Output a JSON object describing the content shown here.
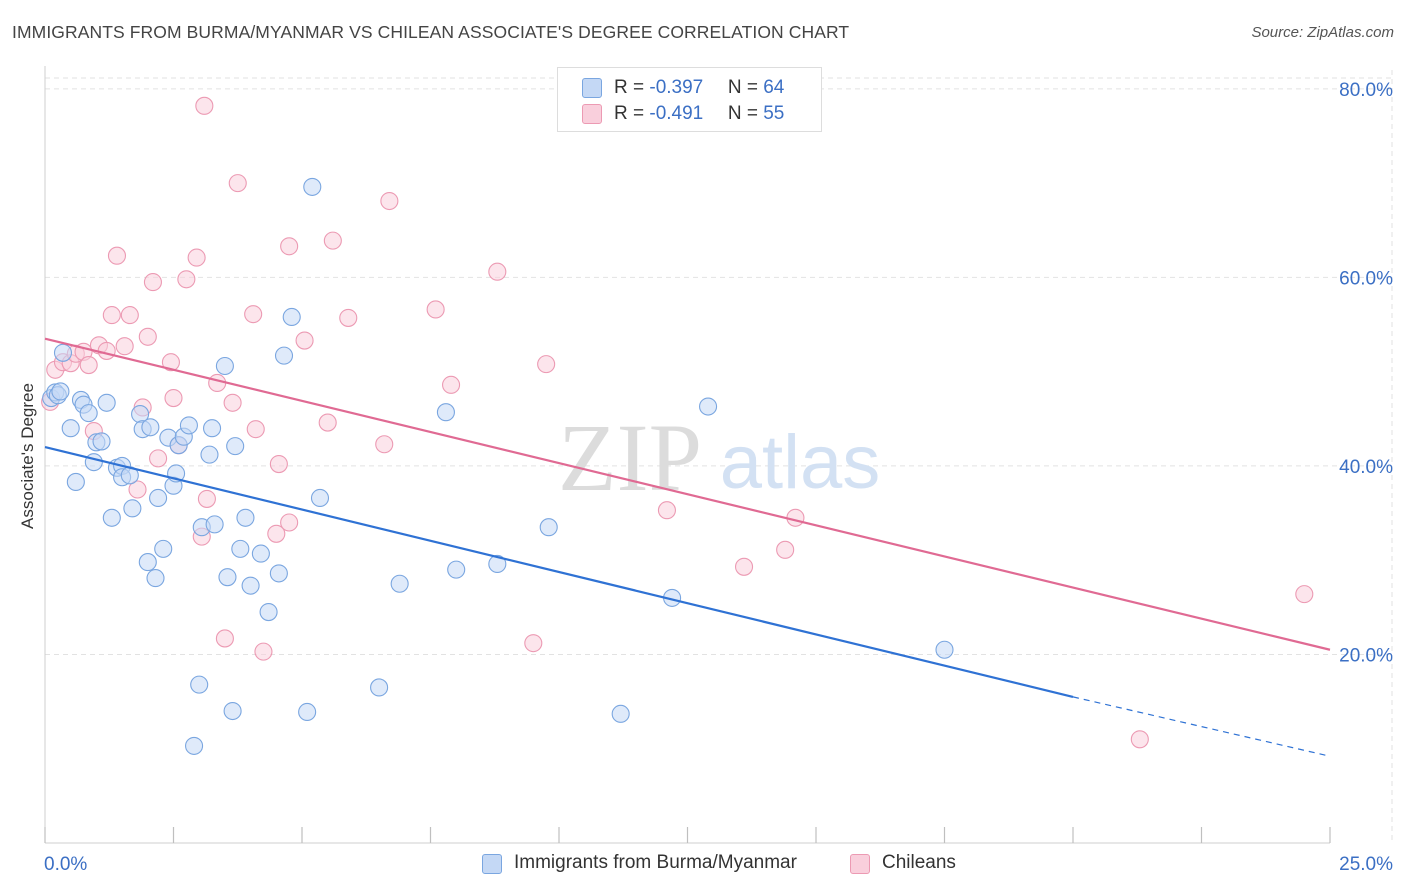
{
  "header": {
    "title": "IMMIGRANTS FROM BURMA/MYANMAR VS CHILEAN ASSOCIATE'S DEGREE CORRELATION CHART",
    "source": "Source: ZipAtlas.com"
  },
  "watermark": {
    "zip": "ZIP",
    "atlas": "atlas"
  },
  "legend": {
    "rows": [
      {
        "r_label": "R = ",
        "r_value": "-0.397",
        "n_label": "N = ",
        "n_value": "64"
      },
      {
        "r_label": "R = ",
        "r_value": "-0.491",
        "n_label": "N = ",
        "n_value": "55"
      }
    ]
  },
  "bottom_legend": {
    "series1": "Immigrants from Burma/Myanmar",
    "series2": "Chileans"
  },
  "chart_data": {
    "type": "scatter",
    "title": "IMMIGRANTS FROM BURMA/MYANMAR VS CHILEAN ASSOCIATE'S DEGREE CORRELATION CHART",
    "xlabel": "",
    "ylabel": "Associate's Degree",
    "xlim": [
      0,
      25
    ],
    "ylim": [
      0,
      82
    ],
    "x_tick_labels": [
      "0.0%",
      "25.0%"
    ],
    "y_ticks": [
      20,
      40,
      60,
      80
    ],
    "y_tick_labels": [
      "20.0%",
      "40.0%",
      "60.0%",
      "80.0%"
    ],
    "grid": true,
    "legend_position": "top-center",
    "colors": {
      "series1_fill": "#c4d8f5",
      "series1_stroke": "#7aa6e0",
      "series1_line": "#2f72d4",
      "series2_fill": "#f9cfdc",
      "series2_stroke": "#ec9ab3",
      "series2_line": "#e06a93",
      "grid": "#e2e2e2",
      "axis_label": "#3b6fc4"
    },
    "series": [
      {
        "name": "Immigrants from Burma/Myanmar",
        "r": -0.397,
        "n": 64,
        "trend": {
          "x0": 0,
          "y0": 42,
          "x1": 20,
          "y1": 15.5,
          "dash_to_x": 25,
          "dash_to_y": 9.2
        },
        "points": [
          [
            0.12,
            47.2
          ],
          [
            0.2,
            47.8
          ],
          [
            0.25,
            47.5
          ],
          [
            0.3,
            47.9
          ],
          [
            0.35,
            52
          ],
          [
            0.5,
            44
          ],
          [
            0.6,
            38.3
          ],
          [
            0.7,
            47
          ],
          [
            0.75,
            46.5
          ],
          [
            0.85,
            45.6
          ],
          [
            0.95,
            40.4
          ],
          [
            1.0,
            42.5
          ],
          [
            1.1,
            42.6
          ],
          [
            1.2,
            46.7
          ],
          [
            1.3,
            34.5
          ],
          [
            1.4,
            39.8
          ],
          [
            1.5,
            40
          ],
          [
            1.5,
            38.8
          ],
          [
            1.65,
            39
          ],
          [
            1.7,
            35.5
          ],
          [
            1.85,
            45.5
          ],
          [
            1.9,
            43.9
          ],
          [
            2.0,
            29.8
          ],
          [
            2.05,
            44.1
          ],
          [
            2.15,
            28.1
          ],
          [
            2.2,
            36.6
          ],
          [
            2.3,
            31.2
          ],
          [
            2.4,
            43
          ],
          [
            2.5,
            37.9
          ],
          [
            2.55,
            39.2
          ],
          [
            2.6,
            42.2
          ],
          [
            2.7,
            43.1
          ],
          [
            2.8,
            44.3
          ],
          [
            2.9,
            10.3
          ],
          [
            3.0,
            16.8
          ],
          [
            3.05,
            33.5
          ],
          [
            3.2,
            41.2
          ],
          [
            3.25,
            44
          ],
          [
            3.3,
            33.8
          ],
          [
            3.5,
            50.6
          ],
          [
            3.55,
            28.2
          ],
          [
            3.65,
            14
          ],
          [
            3.7,
            42.1
          ],
          [
            3.8,
            31.2
          ],
          [
            3.9,
            34.5
          ],
          [
            4.0,
            27.3
          ],
          [
            4.2,
            30.7
          ],
          [
            4.35,
            24.5
          ],
          [
            4.55,
            28.6
          ],
          [
            4.65,
            51.7
          ],
          [
            5.1,
            13.9
          ],
          [
            5.35,
            36.6
          ],
          [
            6.5,
            16.5
          ],
          [
            6.9,
            27.5
          ],
          [
            7.8,
            45.7
          ],
          [
            8.0,
            29
          ],
          [
            8.8,
            29.6
          ],
          [
            9.8,
            33.5
          ],
          [
            11.2,
            13.7
          ],
          [
            12.2,
            26
          ],
          [
            12.9,
            46.3
          ],
          [
            17.5,
            20.5
          ],
          [
            5.2,
            69.6
          ],
          [
            4.8,
            55.8
          ]
        ]
      },
      {
        "name": "Chileans",
        "r": -0.491,
        "n": 55,
        "trend": {
          "x0": 0,
          "y0": 53.5,
          "x1": 25,
          "y1": 20.5
        },
        "points": [
          [
            0.1,
            46.8
          ],
          [
            0.2,
            50.2
          ],
          [
            0.35,
            51
          ],
          [
            0.5,
            50.9
          ],
          [
            0.6,
            51.9
          ],
          [
            0.75,
            52.1
          ],
          [
            0.85,
            50.7
          ],
          [
            0.95,
            43.7
          ],
          [
            1.05,
            52.8
          ],
          [
            1.2,
            52.2
          ],
          [
            1.3,
            56
          ],
          [
            1.4,
            62.3
          ],
          [
            1.55,
            52.7
          ],
          [
            1.65,
            56
          ],
          [
            1.8,
            37.5
          ],
          [
            1.9,
            46.2
          ],
          [
            2.0,
            53.7
          ],
          [
            2.1,
            59.5
          ],
          [
            2.2,
            40.8
          ],
          [
            2.45,
            51
          ],
          [
            2.5,
            47.2
          ],
          [
            2.6,
            42.2
          ],
          [
            2.75,
            59.8
          ],
          [
            2.95,
            62.1
          ],
          [
            3.05,
            32.5
          ],
          [
            3.15,
            36.5
          ],
          [
            3.35,
            48.8
          ],
          [
            3.5,
            21.7
          ],
          [
            3.65,
            46.7
          ],
          [
            3.75,
            70
          ],
          [
            4.05,
            56.1
          ],
          [
            4.1,
            43.9
          ],
          [
            4.25,
            20.3
          ],
          [
            4.5,
            32.8
          ],
          [
            4.55,
            40.2
          ],
          [
            4.75,
            63.3
          ],
          [
            4.75,
            34
          ],
          [
            5.05,
            53.3
          ],
          [
            5.5,
            44.6
          ],
          [
            5.6,
            63.9
          ],
          [
            5.9,
            55.7
          ],
          [
            6.6,
            42.3
          ],
          [
            6.7,
            68.1
          ],
          [
            7.6,
            56.6
          ],
          [
            7.9,
            48.6
          ],
          [
            8.8,
            60.6
          ],
          [
            9.5,
            21.2
          ],
          [
            9.75,
            50.8
          ],
          [
            12.1,
            35.3
          ],
          [
            13.6,
            29.3
          ],
          [
            14.4,
            31.1
          ],
          [
            14.6,
            34.5
          ],
          [
            3.1,
            78.2
          ],
          [
            21.3,
            11
          ],
          [
            24.5,
            26.4
          ]
        ]
      }
    ]
  }
}
